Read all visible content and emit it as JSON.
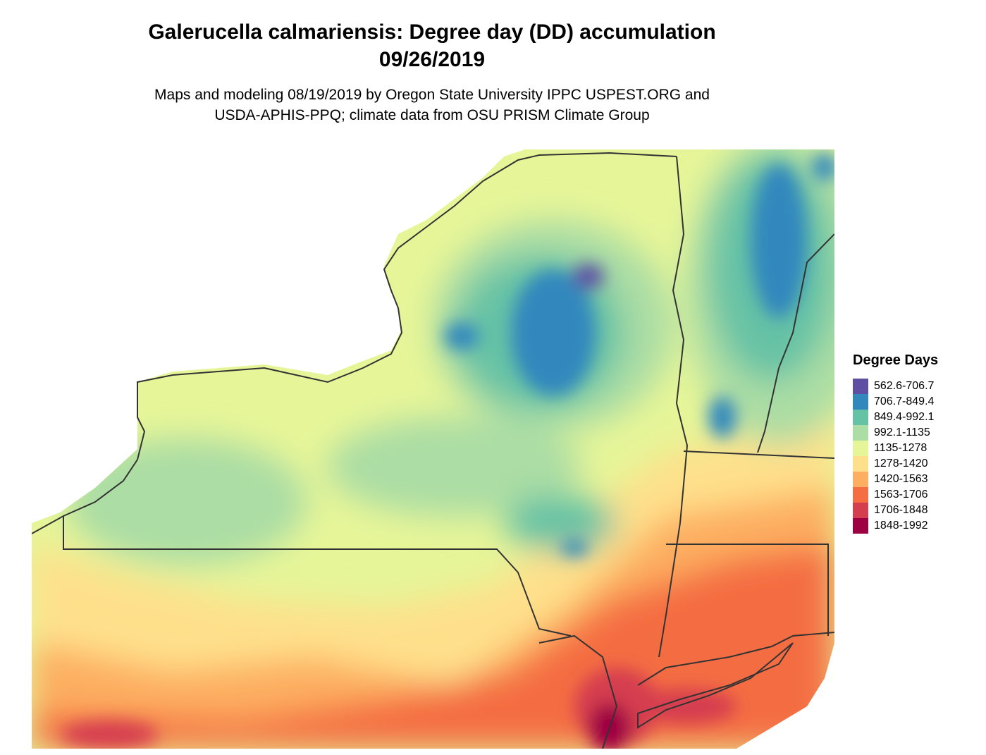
{
  "title_line1": "Galerucella calmariensis: Degree day (DD) accumulation",
  "title_line2": "09/26/2019",
  "subtitle_line1": "Maps and modeling 08/19/2019 by Oregon State University IPPC USPEST.ORG and",
  "subtitle_line2": "USDA-APHIS-PPQ; climate data from OSU PRISM Climate Group",
  "legend": {
    "title": "Degree Days",
    "items": [
      {
        "label": "562.6-706.7",
        "color": "#5e4fa2"
      },
      {
        "label": "706.7-849.4",
        "color": "#3288bd"
      },
      {
        "label": "849.4-992.1",
        "color": "#66c2a5"
      },
      {
        "label": "992.1-1135",
        "color": "#abdda4"
      },
      {
        "label": "1135-1278",
        "color": "#e6f598"
      },
      {
        "label": "1278-1420",
        "color": "#fee08b"
      },
      {
        "label": "1420-1563",
        "color": "#fdae61"
      },
      {
        "label": "1563-1706",
        "color": "#f46d43"
      },
      {
        "label": "1706-1848",
        "color": "#d53e4f"
      },
      {
        "label": "1848-1992",
        "color": "#9e0142"
      }
    ]
  }
}
